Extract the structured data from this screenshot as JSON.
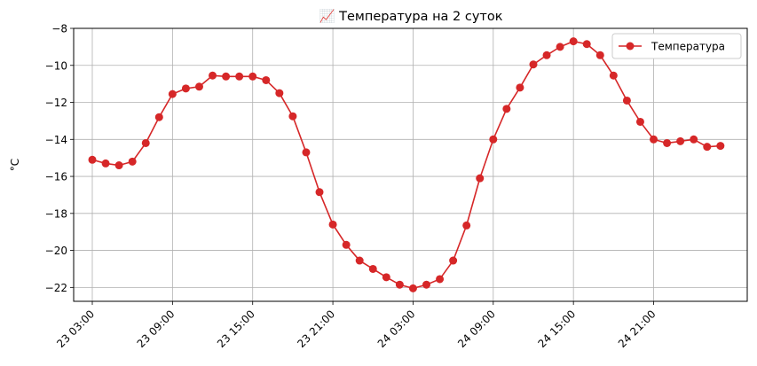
{
  "chart_data": {
    "type": "line",
    "title": "📈 Температура на 2 суток",
    "xlabel": "",
    "ylabel": "°C",
    "ylim": [
      -22.75,
      -8
    ],
    "y_ticks": [
      -22,
      -20,
      -18,
      -16,
      -14,
      -12,
      -10,
      -8
    ],
    "x_ticks": [
      "23 03:00",
      "23 09:00",
      "23 15:00",
      "23 21:00",
      "24 03:00",
      "24 09:00",
      "24 15:00",
      "24 21:00"
    ],
    "x_start": "2024-01-23T03:00",
    "x_step_hours": 1,
    "grid": true,
    "legend": "top-right",
    "color": "#d62728",
    "series": [
      {
        "name": "Температура",
        "values": [
          -15.1,
          -15.3,
          -15.4,
          -15.2,
          -14.2,
          -12.8,
          -11.55,
          -11.25,
          -11.15,
          -10.55,
          -10.6,
          -10.6,
          -10.6,
          -10.8,
          -11.5,
          -12.75,
          -14.7,
          -16.85,
          -18.6,
          -19.7,
          -20.55,
          -21.0,
          -21.45,
          -21.85,
          -22.05,
          -21.85,
          -21.55,
          -20.55,
          -18.65,
          -16.1,
          -14.0,
          -12.35,
          -11.2,
          -9.95,
          -9.45,
          -9.0,
          -8.7,
          -8.85,
          -9.45,
          -10.55,
          -11.9,
          -13.05,
          -14.0,
          -14.2,
          -14.1,
          -14.0,
          -14.4,
          -14.35
        ]
      }
    ]
  }
}
